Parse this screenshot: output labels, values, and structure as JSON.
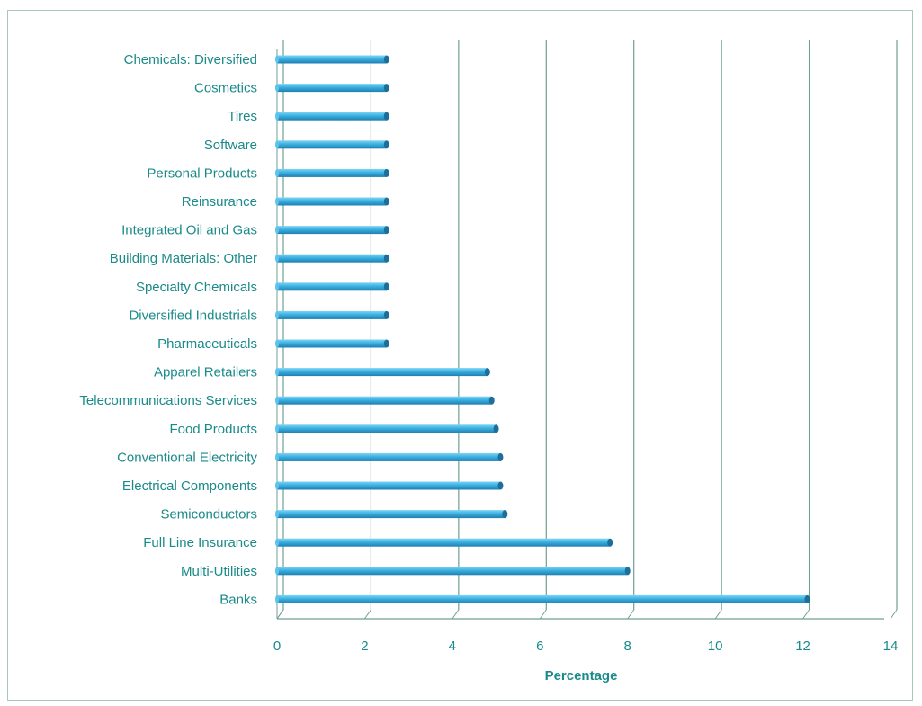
{
  "chart_data": {
    "type": "bar",
    "orientation": "horizontal",
    "categories": [
      "Chemicals: Diversified",
      "Cosmetics",
      "Tires",
      "Software",
      "Personal Products",
      "Reinsurance",
      "Integrated Oil and Gas",
      "Building Materials: Other",
      "Specialty Chemicals",
      "Diversified Industrials",
      "Pharmaceuticals",
      "Apparel Retailers",
      "Telecommunications Services",
      "Food Products",
      "Conventional Electricity",
      "Electrical Components",
      "Semiconductors",
      "Full Line Insurance",
      "Multi-Utilities",
      "Banks"
    ],
    "values": [
      2.5,
      2.5,
      2.5,
      2.5,
      2.5,
      2.5,
      2.5,
      2.5,
      2.5,
      2.5,
      2.5,
      4.8,
      4.9,
      5.0,
      5.1,
      5.1,
      5.2,
      7.6,
      8.0,
      12.1
    ],
    "xticks": [
      "0",
      "2",
      "4",
      "6",
      "8",
      "10",
      "12",
      "14"
    ],
    "xlim": [
      0,
      14
    ],
    "xlabel": "Percentage",
    "ylabel": "",
    "title": "",
    "grid": true,
    "legend": "none",
    "colors": {
      "bar": "#3ab0e0",
      "bar_dark": "#1d6f9a",
      "text": "#1a8a8a",
      "grid": "#6f9f94",
      "border": "#a9c7bd"
    }
  }
}
